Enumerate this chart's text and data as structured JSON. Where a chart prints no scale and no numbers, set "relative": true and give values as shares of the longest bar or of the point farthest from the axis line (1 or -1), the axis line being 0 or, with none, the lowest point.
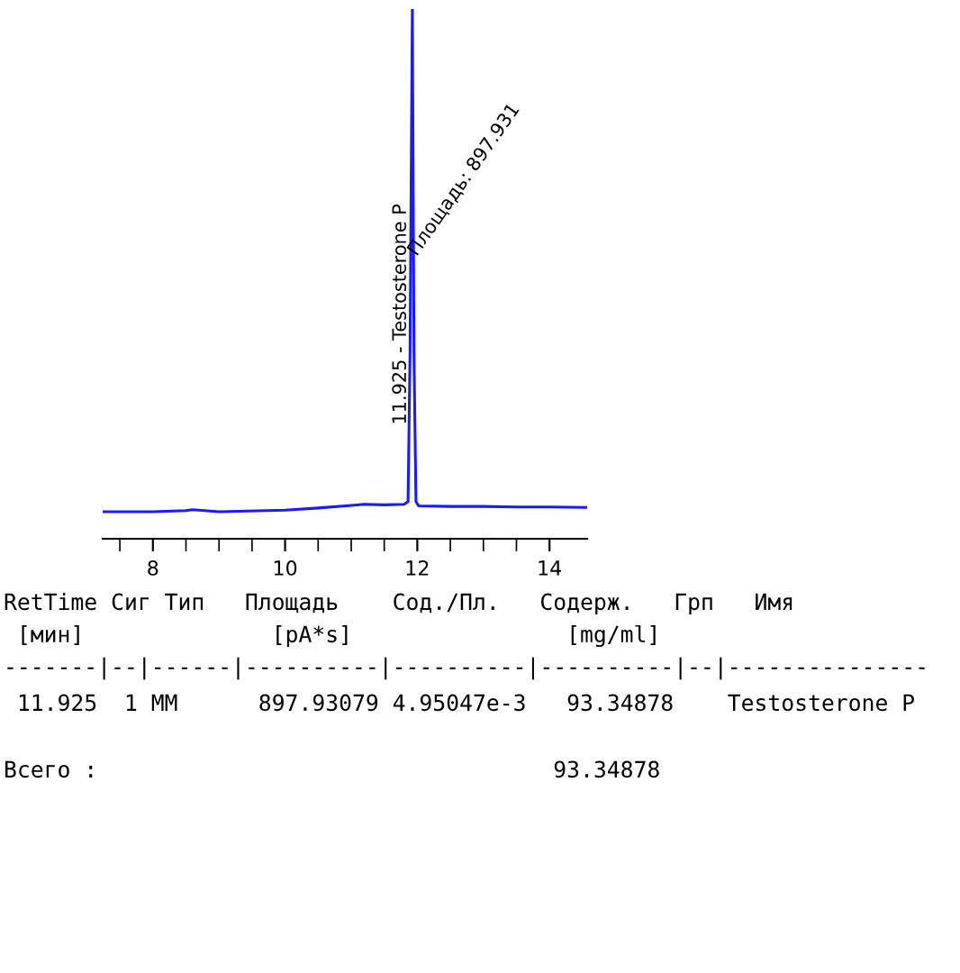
{
  "chart_data": {
    "type": "line",
    "relative": true,
    "x": [
      7.24,
      8.0,
      8.5,
      8.6,
      9.0,
      10.0,
      10.5,
      11.0,
      11.2,
      11.5,
      11.8,
      11.86,
      11.89,
      11.925,
      11.95,
      11.98,
      12.02,
      12.5,
      13.0,
      13.5,
      14.0,
      14.57
    ],
    "series": [
      {
        "color": "#1a1aff",
        "values": [
          0.051,
          0.051,
          0.053,
          0.055,
          0.051,
          0.054,
          0.058,
          0.063,
          0.065,
          0.064,
          0.065,
          0.07,
          0.35,
          1,
          0.35,
          0.07,
          0.062,
          0.061,
          0.061,
          0.06,
          0.06,
          0.059
        ]
      }
    ],
    "xlim": [
      7.24,
      14.57
    ],
    "xticks": [
      {
        "value": 7.5,
        "label": null
      },
      8,
      {
        "value": 8.5,
        "label": null
      },
      {
        "value": 9,
        "label": null
      },
      {
        "value": 9.5,
        "label": null
      },
      10,
      {
        "value": 10.5,
        "label": null
      },
      {
        "value": 11,
        "label": null
      },
      {
        "value": 11.5,
        "label": null
      },
      12,
      {
        "value": 12.5,
        "label": null
      },
      {
        "value": 13,
        "label": null
      },
      {
        "value": 13.5,
        "label": null
      },
      14
    ],
    "grid": false,
    "legend": false,
    "marker": "none",
    "line_style": "solid",
    "annotations": [
      "11.925 - Testosterone P",
      "Площадь: 897.931",
      "RetTime Сиг Тип   Площадь    Сод./Пл.   Содерж.   Грп   Имя",
      " [мин]              [pA*s]                [mg/ml]",
      "-------|--|------|----------|----------|----------|--|---------------",
      " 11.925  1 MM      897.93079 4.95047e-3   93.34878    Testosterone P",
      "Всего :                                  93.34878"
    ]
  }
}
